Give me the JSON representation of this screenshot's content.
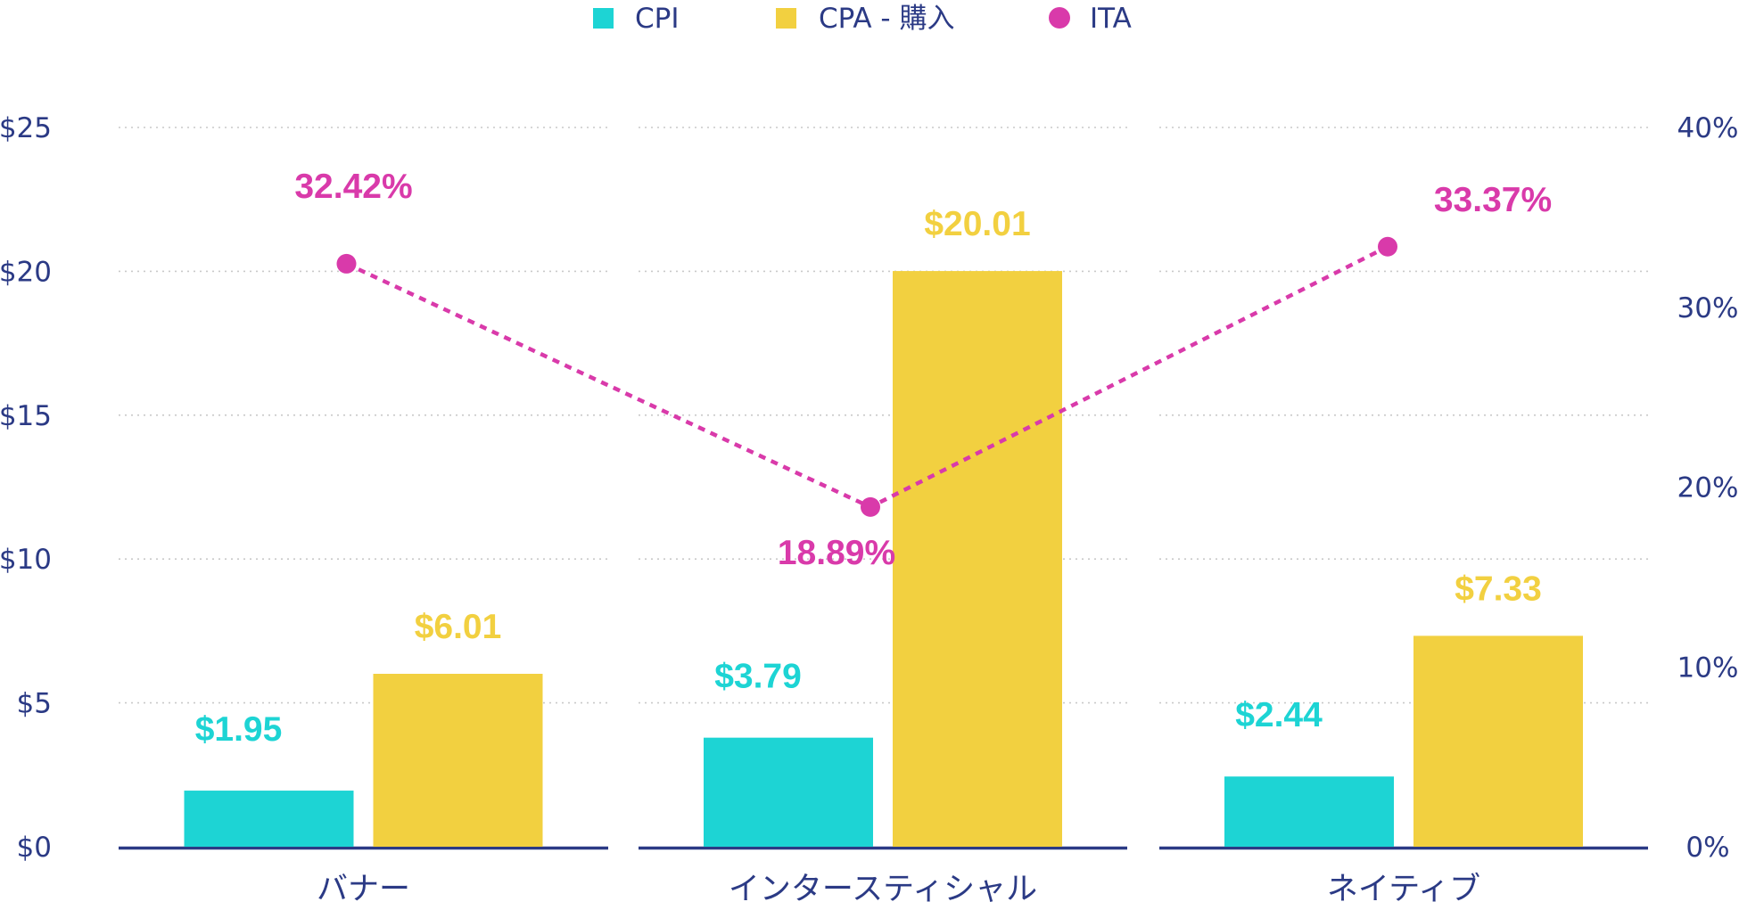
{
  "chart_data": {
    "type": "bar",
    "title": "",
    "categories": [
      "バナー",
      "インタースティシャル",
      "ネイティブ"
    ],
    "series": [
      {
        "name": "CPI",
        "kind": "bar",
        "axis": "left",
        "color": "#1dd4d4",
        "values": [
          1.95,
          3.79,
          2.44
        ],
        "labels": [
          "$1.95",
          "$3.79",
          "$2.44"
        ]
      },
      {
        "name": "CPA - 購入",
        "kind": "bar",
        "axis": "left",
        "color": "#f2d040",
        "values": [
          6.01,
          20.01,
          7.33
        ],
        "labels": [
          "$6.01",
          "$20.01",
          "$7.33"
        ]
      },
      {
        "name": "ITA",
        "kind": "line",
        "axis": "right",
        "color": "#d93aaa",
        "values": [
          32.42,
          18.89,
          33.37
        ],
        "labels": [
          "32.42%",
          "18.89%",
          "33.37%"
        ]
      }
    ],
    "left_axis": {
      "ylim": [
        0,
        25
      ],
      "ticks": [
        0,
        5,
        10,
        15,
        20,
        25
      ],
      "tick_labels": [
        "$0",
        "$5",
        "$10",
        "$15",
        "$20",
        "$25"
      ]
    },
    "right_axis": {
      "ylim": [
        0,
        40
      ],
      "ticks": [
        0,
        10,
        20,
        30,
        40
      ],
      "tick_labels": [
        "0%",
        "10%",
        "20%",
        "30%",
        "40%"
      ]
    },
    "legend": {
      "position": "top",
      "entries": [
        "CPI",
        "CPA - 購入",
        "ITA"
      ]
    },
    "grid": true,
    "xlabel": "",
    "ylabel": ""
  },
  "colors": {
    "axis_text": "#2b3a85",
    "baseline": "#2b3a85",
    "grid": "#c9c9c9"
  }
}
